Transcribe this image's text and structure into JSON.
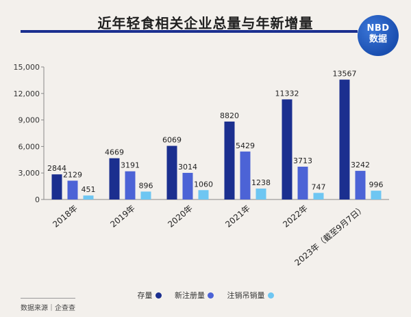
{
  "title": "近年轻食相关企业总量与年新增量",
  "logo": {
    "top": "NBD",
    "bottom": "数据"
  },
  "source": "数据来源｜企查查",
  "colors": {
    "series1": "#1b2f8f",
    "series2": "#4c63d6",
    "series3": "#6ec6f2",
    "title_bar": "#1b2f8f"
  },
  "chart_data": {
    "type": "bar",
    "categories": [
      "2018年",
      "2019年",
      "2020年",
      "2021年",
      "2022年",
      "2023年（截至9月7日）"
    ],
    "series": [
      {
        "name": "存量",
        "values": [
          2844,
          4669,
          6069,
          8820,
          11332,
          13567
        ]
      },
      {
        "name": "新注册量",
        "values": [
          2129,
          3191,
          3014,
          5429,
          3713,
          3242
        ]
      },
      {
        "name": "注销吊销量",
        "values": [
          451,
          896,
          1060,
          1238,
          747,
          996
        ]
      }
    ],
    "ylim": [
      0,
      15000
    ],
    "yticks": [
      "0",
      "3,000",
      "6,000",
      "9,000",
      "12,000",
      "15,000"
    ],
    "legend_position": "bottom-center",
    "grid": false
  }
}
